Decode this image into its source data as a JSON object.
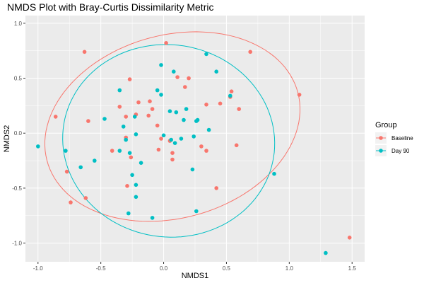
{
  "chart_data": {
    "type": "scatter",
    "title": "NMDS Plot with Bray-Curtis Dissimilarity Metric",
    "xlabel": "NMDS1",
    "ylabel": "NMDS2",
    "xlim": [
      -1.1,
      1.6
    ],
    "ylim": [
      -1.17,
      1.07
    ],
    "xticks": [
      -1.0,
      -0.5,
      0.0,
      0.5,
      1.0,
      1.5
    ],
    "xtick_labels": [
      "-1.0",
      "-0.5",
      "0.0",
      "0.5",
      "1.0",
      "1.5"
    ],
    "yticks": [
      -1.0,
      -0.5,
      0.0,
      0.5,
      1.0
    ],
    "ytick_labels": [
      "-1.0",
      "-0.5",
      "0.0",
      "0.5",
      "1.0"
    ],
    "grid": true,
    "legend": {
      "title": "Group",
      "placement": "right"
    },
    "series": [
      {
        "name": "Baseline",
        "color": "#F8766D",
        "ellipse": {
          "center": [
            0.07,
            0.06
          ],
          "rx": 1.05,
          "ry": 0.82,
          "angle_deg": 24
        },
        "points": [
          [
            0.02,
            0.82
          ],
          [
            -0.63,
            0.74
          ],
          [
            0.69,
            0.74
          ],
          [
            1.08,
            0.35
          ],
          [
            -0.27,
            0.49
          ],
          [
            0.11,
            0.51
          ],
          [
            0.2,
            0.5
          ],
          [
            0.17,
            0.42
          ],
          [
            0.54,
            0.38
          ],
          [
            0.53,
            0.33
          ],
          [
            -0.86,
            0.15
          ],
          [
            -0.6,
            0.11
          ],
          [
            -0.35,
            0.24
          ],
          [
            -0.2,
            0.28
          ],
          [
            -0.11,
            0.29
          ],
          [
            -0.09,
            0.22
          ],
          [
            -0.3,
            0.15
          ],
          [
            -0.22,
            0.17
          ],
          [
            0.34,
            0.26
          ],
          [
            0.45,
            0.27
          ],
          [
            0.6,
            0.22
          ],
          [
            -0.12,
            0.16
          ],
          [
            -0.05,
            0.07
          ],
          [
            -0.41,
            -0.16
          ],
          [
            -0.3,
            -0.04
          ],
          [
            -0.02,
            -0.05
          ],
          [
            -0.04,
            -0.15
          ],
          [
            0.05,
            -0.07
          ],
          [
            0.07,
            -0.18
          ],
          [
            0.3,
            -0.12
          ],
          [
            0.34,
            -0.16
          ],
          [
            0.58,
            -0.11
          ],
          [
            -0.26,
            -0.22
          ],
          [
            0.07,
            -0.24
          ],
          [
            -0.77,
            -0.35
          ],
          [
            -0.62,
            -0.59
          ],
          [
            -0.29,
            -0.48
          ],
          [
            -0.74,
            -0.63
          ],
          [
            0.42,
            -0.5
          ],
          [
            1.48,
            -0.95
          ]
        ]
      },
      {
        "name": "Day 90",
        "color": "#00BFC4",
        "ellipse": {
          "center": [
            0.04,
            -0.07
          ],
          "rx": 0.84,
          "ry": 0.88,
          "angle_deg": 18
        },
        "points": [
          [
            -1.0,
            -0.12
          ],
          [
            -0.78,
            -0.16
          ],
          [
            -0.66,
            -0.31
          ],
          [
            -0.55,
            -0.25
          ],
          [
            -0.47,
            0.13
          ],
          [
            -0.35,
            0.39
          ],
          [
            -0.32,
            0.06
          ],
          [
            -0.3,
            -0.06
          ],
          [
            -0.35,
            -0.16
          ],
          [
            -0.27,
            -0.18
          ],
          [
            -0.25,
            -0.38
          ],
          [
            -0.22,
            -0.47
          ],
          [
            -0.22,
            -0.58
          ],
          [
            -0.28,
            -0.73
          ],
          [
            -0.09,
            -0.77
          ],
          [
            -0.23,
            0.15
          ],
          [
            -0.22,
            -0.01
          ],
          [
            -0.18,
            -0.27
          ],
          [
            -0.05,
            0.39
          ],
          [
            -0.02,
            0.35
          ],
          [
            -0.02,
            0.62
          ],
          [
            0.0,
            -0.02
          ],
          [
            0.05,
            0.2
          ],
          [
            0.08,
            0.56
          ],
          [
            0.1,
            0.19
          ],
          [
            0.06,
            -0.06
          ],
          [
            0.14,
            -0.05
          ],
          [
            0.09,
            -0.09
          ],
          [
            0.16,
            0.12
          ],
          [
            0.18,
            0.22
          ],
          [
            0.26,
            0.11
          ],
          [
            0.27,
            0.12
          ],
          [
            0.34,
            0.72
          ],
          [
            0.42,
            0.56
          ],
          [
            0.53,
            0.34
          ],
          [
            0.36,
            0.03
          ],
          [
            0.24,
            -0.03
          ],
          [
            0.23,
            -0.33
          ],
          [
            0.26,
            -0.71
          ],
          [
            0.88,
            -0.37
          ],
          [
            1.29,
            -1.09
          ]
        ]
      }
    ]
  }
}
